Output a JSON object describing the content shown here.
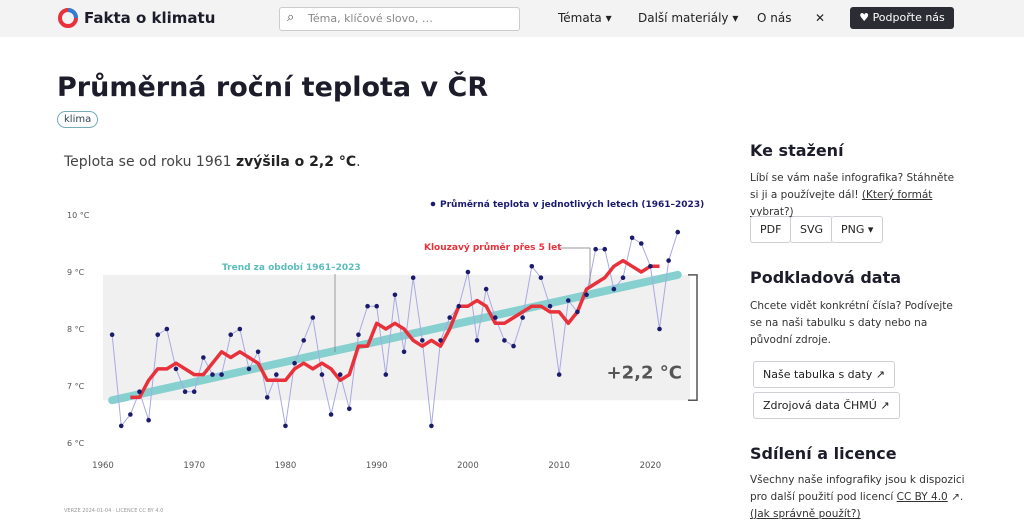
{
  "header": {
    "logo": "Fakta o klimatu",
    "search_placeholder": "Téma, klíčové slovo, …",
    "nav": [
      "Témata",
      "Další materiály",
      "O nás"
    ],
    "support": "Podpořte nás"
  },
  "article": {
    "title": "Průměrná roční teplota v ČR",
    "tag": "klima",
    "footer": "VERZE 2024-01-04 · LICENCE CC BY 4.0"
  },
  "chart_data": {
    "type": "line",
    "subtitle": {
      "text": "Teplota se od roku 1961",
      "emphasis": "zvýšila o 2,2 °C",
      "end": "."
    },
    "annotation": "+2,2 °C",
    "xlim": [
      1960,
      2025
    ],
    "ylim": [
      6,
      10
    ],
    "xticks": [
      1960,
      1970,
      1980,
      1990,
      2000,
      2010,
      2020
    ],
    "yticks": [
      {
        "value": 6,
        "label": "6 °C"
      },
      {
        "value": 7,
        "label": "7 °C"
      },
      {
        "value": 8,
        "label": "8 °C"
      },
      {
        "value": 9,
        "label": "9 °C"
      },
      {
        "value": 10,
        "label": "10 °C"
      }
    ],
    "series": [
      {
        "name": "Průměrná teplota v jednotlivých letech (1961–2023)",
        "color": "#1b1b6e",
        "x": [
          1961,
          1962,
          1963,
          1964,
          1965,
          1966,
          1967,
          1968,
          1969,
          1970,
          1971,
          1972,
          1973,
          1974,
          1975,
          1976,
          1977,
          1978,
          1979,
          1980,
          1981,
          1982,
          1983,
          1984,
          1985,
          1986,
          1987,
          1988,
          1989,
          1990,
          1991,
          1992,
          1993,
          1994,
          1995,
          1996,
          1997,
          1998,
          1999,
          2000,
          2001,
          2002,
          2003,
          2004,
          2005,
          2006,
          2007,
          2008,
          2009,
          2010,
          2011,
          2012,
          2013,
          2014,
          2015,
          2016,
          2017,
          2018,
          2019,
          2020,
          2021,
          2022,
          2023
        ],
        "values": [
          7.9,
          6.3,
          6.5,
          6.9,
          6.4,
          7.9,
          8.0,
          7.3,
          6.9,
          6.9,
          7.5,
          7.2,
          7.2,
          7.9,
          8.0,
          7.3,
          7.6,
          6.8,
          7.2,
          6.3,
          7.4,
          7.8,
          8.2,
          7.2,
          6.5,
          7.2,
          6.6,
          7.9,
          8.4,
          8.4,
          7.2,
          8.6,
          7.6,
          8.9,
          7.8,
          6.3,
          7.8,
          8.2,
          8.4,
          9.0,
          7.8,
          8.7,
          8.2,
          7.8,
          7.7,
          8.2,
          9.1,
          8.9,
          8.4,
          7.2,
          8.5,
          8.3,
          8.6,
          9.4,
          9.4,
          8.7,
          8.9,
          9.6,
          9.5,
          9.1,
          8.0,
          9.2,
          9.7
        ]
      },
      {
        "name": "Klouzavý průměr přes 5 let",
        "color": "#e8313a",
        "x": [
          1963,
          1964,
          1965,
          1966,
          1967,
          1968,
          1969,
          1970,
          1971,
          1972,
          1973,
          1974,
          1975,
          1976,
          1977,
          1978,
          1979,
          1980,
          1981,
          1982,
          1983,
          1984,
          1985,
          1986,
          1987,
          1988,
          1989,
          1990,
          1991,
          1992,
          1993,
          1994,
          1995,
          1996,
          1997,
          1998,
          1999,
          2000,
          2001,
          2002,
          2003,
          2004,
          2005,
          2006,
          2007,
          2008,
          2009,
          2010,
          2011,
          2012,
          2013,
          2014,
          2015,
          2016,
          2017,
          2018,
          2019,
          2020,
          2021
        ],
        "values": [
          6.8,
          6.8,
          7.1,
          7.3,
          7.3,
          7.4,
          7.3,
          7.2,
          7.2,
          7.4,
          7.6,
          7.5,
          7.6,
          7.5,
          7.4,
          7.1,
          7.1,
          7.1,
          7.3,
          7.4,
          7.3,
          7.4,
          7.3,
          7.1,
          7.2,
          7.7,
          7.7,
          8.1,
          8.0,
          8.1,
          8.0,
          7.8,
          7.7,
          7.8,
          7.7,
          8.0,
          8.4,
          8.4,
          8.5,
          8.4,
          8.1,
          8.1,
          8.2,
          8.3,
          8.4,
          8.4,
          8.3,
          8.3,
          8.1,
          8.3,
          8.7,
          8.8,
          8.9,
          9.1,
          9.2,
          9.1,
          9.0,
          9.1,
          9.1
        ]
      },
      {
        "name": "Trend za období 1961–2023",
        "color": "#86d0d0",
        "x": [
          1961,
          2023
        ],
        "values": [
          6.75,
          8.95
        ]
      }
    ]
  },
  "sidebar": {
    "download": {
      "heading": "Ke stažení",
      "text": "Líbí se vám naše infografika? Stáhněte si ji a používejte dál!",
      "link": "(Který formát vybrat?)",
      "buttons": [
        "PDF",
        "SVG",
        "PNG"
      ]
    },
    "data": {
      "heading": "Podkladová data",
      "text": "Chcete vidět konkrétní čísla? Podívejte se na naši tabulku s daty nebo na původní zdroje.",
      "buttons": [
        "Naše tabulka s daty",
        "Zdrojová data ČHMÚ"
      ]
    },
    "license": {
      "heading": "Sdílení a licence",
      "text": "Všechny naše infografiky jsou k dispozici pro další použití pod licencí",
      "link": "CC BY 4.0",
      "link2": "(Jak správně použít?)"
    }
  }
}
